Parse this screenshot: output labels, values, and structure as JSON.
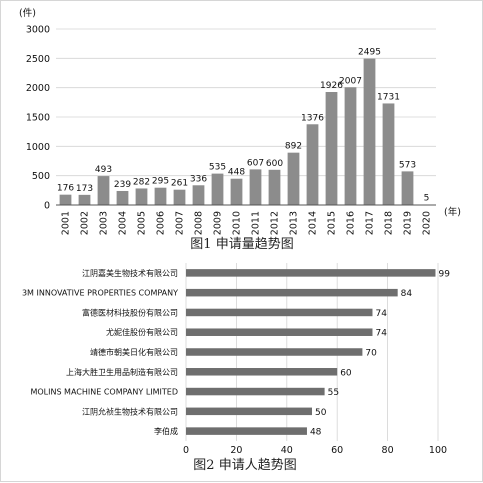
{
  "chart_data": [
    {
      "type": "bar",
      "orientation": "vertical",
      "title": "图1  申请量趋势图",
      "ylabel": "(件)",
      "xlabel": "(年)",
      "ylim": [
        0,
        3000
      ],
      "yticks": [
        "0",
        "500",
        "1000",
        "1500",
        "2000",
        "2500",
        "3000"
      ],
      "grid": true,
      "bar_color": "#8c8c8c",
      "categories": [
        "2001",
        "2002",
        "2003",
        "2004",
        "2005",
        "2006",
        "2007",
        "2008",
        "2009",
        "2010",
        "2011",
        "2012",
        "2013",
        "2014",
        "2015",
        "2016",
        "2017",
        "2018",
        "2019",
        "2020"
      ],
      "values": [
        176,
        173,
        493,
        239,
        282,
        295,
        261,
        336,
        535,
        448,
        607,
        600,
        892,
        1376,
        1926,
        2007,
        2495,
        1731,
        573,
        5
      ],
      "value_labels": [
        "176",
        "173",
        "493",
        "239",
        "282",
        "295",
        "261",
        "336",
        "535",
        "448",
        "607",
        "600",
        "892",
        "1376",
        "1926",
        "2007",
        "2495",
        "1731",
        "573",
        "5"
      ]
    },
    {
      "type": "bar",
      "orientation": "horizontal",
      "title": "图2   申请人趋势图",
      "xlim": [
        0,
        100
      ],
      "xticks": [
        "0",
        "20",
        "40",
        "60",
        "80",
        "100"
      ],
      "grid": true,
      "bar_color": "#6e6e6e",
      "categories": [
        "江阴嘉美生物技术有限公司",
        "3M INNOVATIVE PROPERTIES COMPANY",
        "富德医材科技股份有限公司",
        "尤妮佳股份有限公司",
        "靖德市朝美日化有限公司",
        "上海大胜卫生用品制造有限公司",
        "MOLINS MACHINE COMPANY LIMITED",
        "江阴允祯生物技术有限公司",
        "李伯成"
      ],
      "values": [
        99,
        84,
        74,
        74,
        70,
        60,
        55,
        50,
        48
      ],
      "value_labels": [
        "99",
        "84",
        "74",
        "74",
        "70",
        "60",
        "55",
        "50",
        "48"
      ]
    }
  ]
}
